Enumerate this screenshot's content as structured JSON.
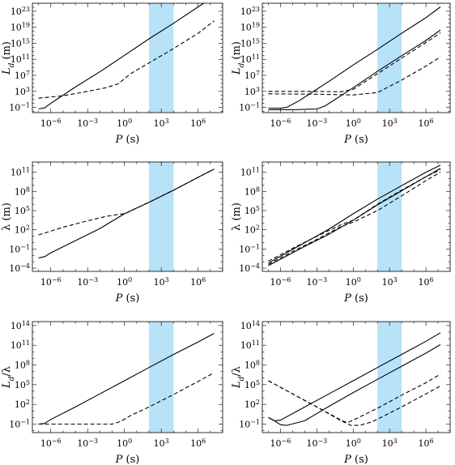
{
  "chart_data": [
    {
      "type": "line",
      "panel": "top-left",
      "xlabel_sym": "P",
      "xlabel_unit": "(s)",
      "ylabel_main": "L",
      "ylabel_sub": "d",
      "ylabel_unit": "(m)",
      "x_log10_range": [
        -7.5,
        8.0
      ],
      "y_log10_range": [
        -2.3,
        25.0
      ],
      "x_tick_exponents": [
        -6,
        -3,
        0,
        3,
        6
      ],
      "y_tick_exponents": [
        -1,
        3,
        7,
        11,
        15,
        19,
        23
      ],
      "shaded_band_log10_x": [
        2.0,
        4.0
      ],
      "shade_color": "#b7e2f8",
      "series": [
        {
          "style": "solid",
          "points": [
            [
              -7.0,
              -1.4
            ],
            [
              -6.5,
              -1.1
            ],
            [
              -6.0,
              0.0
            ],
            [
              -4.0,
              4.1
            ],
            [
              -2.0,
              7.9
            ],
            [
              0.0,
              12.0
            ],
            [
              2.0,
              16.1
            ],
            [
              4.0,
              20.0
            ],
            [
              6.0,
              24.1
            ],
            [
              7.3,
              26.6
            ]
          ]
        },
        {
          "style": "dashed",
          "points": [
            [
              -7.0,
              1.3
            ],
            [
              -5.0,
              1.9
            ],
            [
              -3.0,
              3.0
            ],
            [
              -1.5,
              3.9
            ],
            [
              -0.5,
              4.9
            ],
            [
              0.5,
              7.4
            ],
            [
              2.0,
              10.1
            ],
            [
              4.0,
              13.7
            ],
            [
              6.0,
              17.5
            ],
            [
              7.3,
              20.6
            ]
          ]
        }
      ]
    },
    {
      "type": "line",
      "panel": "top-right",
      "xlabel_sym": "P",
      "xlabel_unit": "(s)",
      "ylabel_main": "L",
      "ylabel_sub": "d",
      "ylabel_unit": "(m)",
      "x_log10_range": [
        -7.5,
        8.0
      ],
      "y_log10_range": [
        -2.3,
        25.0
      ],
      "x_tick_exponents": [
        -6,
        -3,
        0,
        3,
        6
      ],
      "y_tick_exponents": [
        -1,
        3,
        7,
        11,
        15,
        19,
        23
      ],
      "shaded_band_log10_x": [
        2.0,
        4.0
      ],
      "shade_color": "#b7e2f8",
      "series": [
        {
          "style": "solid",
          "points": [
            [
              -7.0,
              -1.2
            ],
            [
              -6.0,
              -1.2
            ],
            [
              -5.5,
              -1.0
            ],
            [
              -4.5,
              0.6
            ],
            [
              -2.0,
              5.5
            ],
            [
              0.0,
              9.6
            ],
            [
              2.0,
              13.5
            ],
            [
              4.0,
              17.5
            ],
            [
              6.0,
              21.4
            ],
            [
              7.2,
              24.1
            ]
          ]
        },
        {
          "style": "solid",
          "points": [
            [
              -7.0,
              -1.6
            ],
            [
              -5.0,
              -1.6
            ],
            [
              -3.0,
              -1.4
            ],
            [
              -2.3,
              -0.6
            ],
            [
              0.0,
              3.9
            ],
            [
              2.0,
              8.0
            ],
            [
              4.0,
              11.9
            ],
            [
              6.0,
              15.7
            ],
            [
              7.2,
              18.3
            ]
          ]
        },
        {
          "style": "dashed",
          "points": [
            [
              -7.0,
              3.0
            ],
            [
              -3.0,
              3.0
            ],
            [
              -1.0,
              2.9
            ],
            [
              0.0,
              3.5
            ],
            [
              2.0,
              7.4
            ],
            [
              4.0,
              11.3
            ],
            [
              6.0,
              15.2
            ],
            [
              7.2,
              17.6
            ]
          ]
        },
        {
          "style": "dashed",
          "points": [
            [
              -7.0,
              2.4
            ],
            [
              -3.0,
              2.3
            ],
            [
              0.0,
              2.1
            ],
            [
              2.0,
              2.7
            ],
            [
              4.0,
              5.8
            ],
            [
              6.0,
              9.3
            ],
            [
              7.2,
              11.6
            ]
          ]
        }
      ]
    },
    {
      "type": "line",
      "panel": "middle-left",
      "xlabel_sym": "P",
      "xlabel_unit": "(s)",
      "ylabel_main": "λ",
      "ylabel_sub": "",
      "ylabel_unit": "(m)",
      "x_log10_range": [
        -7.5,
        8.0
      ],
      "y_log10_range": [
        -4.5,
        12.6
      ],
      "x_tick_exponents": [
        -6,
        -3,
        0,
        3,
        6
      ],
      "y_tick_exponents": [
        -4,
        -1,
        2,
        5,
        8,
        11
      ],
      "shaded_band_log10_x": [
        2.0,
        4.0
      ],
      "shade_color": "#b7e2f8",
      "series": [
        {
          "style": "solid",
          "points": [
            [
              -7.0,
              -2.4
            ],
            [
              -6.5,
              -2.2
            ],
            [
              -6.0,
              -1.6
            ],
            [
              -4.0,
              0.3
            ],
            [
              -2.0,
              2.2
            ],
            [
              0.0,
              4.5
            ],
            [
              2.0,
              6.3
            ],
            [
              4.0,
              8.2
            ],
            [
              6.0,
              10.2
            ],
            [
              7.3,
              11.5
            ]
          ]
        },
        {
          "style": "dashed",
          "points": [
            [
              -7.0,
              1.2
            ],
            [
              -5.0,
              2.4
            ],
            [
              -3.0,
              3.4
            ],
            [
              -1.5,
              4.1
            ],
            [
              -0.5,
              4.4
            ],
            [
              0.0,
              4.5
            ],
            [
              2.0,
              6.3
            ],
            [
              4.0,
              8.2
            ],
            [
              6.0,
              10.2
            ],
            [
              7.3,
              11.5
            ]
          ]
        }
      ]
    },
    {
      "type": "line",
      "panel": "middle-right",
      "xlabel_sym": "P",
      "xlabel_unit": "(s)",
      "ylabel_main": "λ",
      "ylabel_sub": "",
      "ylabel_unit": "(m)",
      "x_log10_range": [
        -7.5,
        8.0
      ],
      "y_log10_range": [
        -4.5,
        12.6
      ],
      "x_tick_exponents": [
        -6,
        -3,
        0,
        3,
        6
      ],
      "y_tick_exponents": [
        -4,
        -1,
        2,
        5,
        8,
        11
      ],
      "shaded_band_log10_x": [
        2.0,
        4.0
      ],
      "shade_color": "#b7e2f8",
      "series": [
        {
          "style": "solid",
          "points": [
            [
              -7.0,
              -3.2
            ],
            [
              -4.0,
              0.0
            ],
            [
              -2.0,
              2.1
            ],
            [
              0.0,
              4.5
            ],
            [
              2.0,
              6.8
            ],
            [
              4.0,
              8.9
            ],
            [
              6.0,
              11.0
            ],
            [
              7.2,
              12.1
            ]
          ]
        },
        {
          "style": "solid",
          "points": [
            [
              -7.0,
              -3.6
            ],
            [
              -4.0,
              -0.6
            ],
            [
              -2.0,
              1.3
            ],
            [
              0.0,
              3.5
            ],
            [
              2.0,
              5.9
            ],
            [
              4.0,
              8.1
            ],
            [
              6.0,
              10.3
            ],
            [
              7.2,
              11.6
            ]
          ]
        },
        {
          "style": "dashed",
          "points": [
            [
              -7.0,
              -2.9
            ],
            [
              -5.0,
              -0.9
            ],
            [
              -3.0,
              1.0
            ],
            [
              -1.0,
              2.8
            ],
            [
              0.0,
              3.5
            ],
            [
              2.0,
              6.0
            ],
            [
              4.0,
              8.2
            ],
            [
              6.0,
              10.3
            ],
            [
              7.2,
              11.4
            ]
          ]
        },
        {
          "style": "dashed",
          "points": [
            [
              -7.0,
              -3.4
            ],
            [
              -5.0,
              -1.4
            ],
            [
              -3.0,
              0.5
            ],
            [
              -1.0,
              2.5
            ],
            [
              0.0,
              3.2
            ],
            [
              2.0,
              5.0
            ],
            [
              4.0,
              7.3
            ],
            [
              6.0,
              9.7
            ],
            [
              7.2,
              11.0
            ]
          ]
        }
      ]
    },
    {
      "type": "line",
      "panel": "bottom-left",
      "xlabel_sym": "P",
      "xlabel_unit": "(s)",
      "ylabel_main": "L",
      "ylabel_sub": "d",
      "ylabel_unit": "/λ",
      "x_log10_range": [
        -7.5,
        8.0
      ],
      "y_log10_range": [
        -2.3,
        14.6
      ],
      "x_tick_exponents": [
        -6,
        -3,
        0,
        3,
        6
      ],
      "y_tick_exponents": [
        -1,
        2,
        5,
        8,
        11,
        14
      ],
      "shaded_band_log10_x": [
        2.0,
        4.0
      ],
      "shade_color": "#b7e2f8",
      "series": [
        {
          "style": "solid",
          "points": [
            [
              -7.0,
              -1.0
            ],
            [
              -6.5,
              -0.9
            ],
            [
              -6.0,
              -0.3
            ],
            [
              -4.0,
              1.6
            ],
            [
              -2.0,
              3.6
            ],
            [
              0.0,
              5.6
            ],
            [
              2.0,
              7.6
            ],
            [
              4.0,
              9.6
            ],
            [
              6.0,
              11.5
            ],
            [
              7.3,
              12.8
            ]
          ]
        },
        {
          "style": "dashed",
          "points": [
            [
              -7.0,
              -1.0
            ],
            [
              -5.0,
              -1.0
            ],
            [
              -3.0,
              -1.0
            ],
            [
              -1.0,
              -1.0
            ],
            [
              -0.3,
              -0.6
            ],
            [
              0.5,
              0.3
            ],
            [
              2.0,
              1.6
            ],
            [
              4.0,
              3.5
            ],
            [
              6.0,
              5.5
            ],
            [
              7.3,
              6.8
            ]
          ]
        }
      ]
    },
    {
      "type": "line",
      "panel": "bottom-right",
      "xlabel_sym": "P",
      "xlabel_unit": "(s)",
      "ylabel_main": "L",
      "ylabel_sub": "d",
      "ylabel_unit": "/λ",
      "x_log10_range": [
        -7.5,
        8.0
      ],
      "y_log10_range": [
        -2.3,
        14.6
      ],
      "x_tick_exponents": [
        -6,
        -3,
        0,
        3,
        6
      ],
      "y_tick_exponents": [
        -1,
        2,
        5,
        8,
        11,
        14
      ],
      "shaded_band_log10_x": [
        2.0,
        4.0
      ],
      "shade_color": "#b7e2f8",
      "series": [
        {
          "style": "solid",
          "points": [
            [
              -7.0,
              0.0
            ],
            [
              -6.5,
              -0.5
            ],
            [
              -6.0,
              -0.4
            ],
            [
              -4.0,
              1.6
            ],
            [
              -2.0,
              3.6
            ],
            [
              0.0,
              5.6
            ],
            [
              2.0,
              7.6
            ],
            [
              4.0,
              9.6
            ],
            [
              6.0,
              11.6
            ],
            [
              7.2,
              12.9
            ]
          ]
        },
        {
          "style": "solid",
          "points": [
            [
              -7.0,
              0.0
            ],
            [
              -6.5,
              -0.5
            ],
            [
              -6.0,
              -1.1
            ],
            [
              -5.5,
              -1.2
            ],
            [
              -4.0,
              -0.5
            ],
            [
              -2.0,
              1.7
            ],
            [
              0.0,
              3.8
            ],
            [
              2.0,
              5.8
            ],
            [
              4.0,
              7.8
            ],
            [
              6.0,
              9.8
            ],
            [
              7.2,
              11.1
            ]
          ]
        },
        {
          "style": "dashed",
          "points": [
            [
              -7.0,
              5.6
            ],
            [
              -5.0,
              3.6
            ],
            [
              -3.0,
              1.6
            ],
            [
              -1.0,
              -0.4
            ],
            [
              -0.5,
              -0.8
            ],
            [
              0.0,
              -0.4
            ],
            [
              2.0,
              1.4
            ],
            [
              4.0,
              3.4
            ],
            [
              6.0,
              5.3
            ],
            [
              7.2,
              6.6
            ]
          ]
        },
        {
          "style": "dashed",
          "points": [
            [
              -7.0,
              5.6
            ],
            [
              -5.0,
              3.6
            ],
            [
              -3.0,
              1.6
            ],
            [
              -1.0,
              -0.5
            ],
            [
              -0.2,
              -1.2
            ],
            [
              0.5,
              -1.2
            ],
            [
              1.5,
              -0.7
            ],
            [
              2.5,
              0.2
            ],
            [
              4.0,
              1.6
            ],
            [
              6.0,
              3.6
            ],
            [
              7.2,
              4.8
            ]
          ]
        }
      ]
    }
  ]
}
